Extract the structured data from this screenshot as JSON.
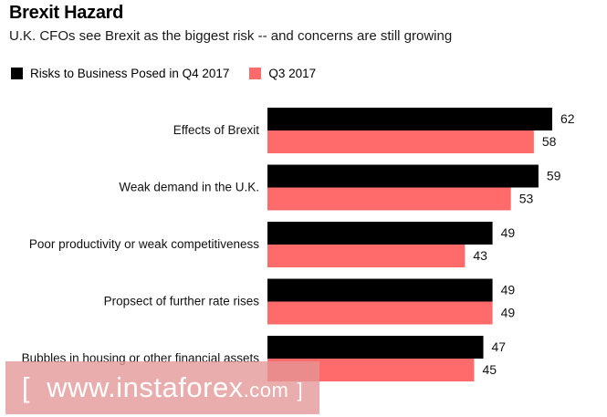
{
  "chart_data": {
    "type": "bar",
    "orientation": "horizontal",
    "title": "Brexit Hazard",
    "subtitle": "U.K. CFOs see Brexit as the biggest risk -- and concerns are still growing",
    "categories": [
      "Effects of Brexit",
      "Weak demand in the U.K.",
      "Poor productivity or weak competitiveness",
      "Propsect of further rate rises",
      "Bubbles in housing or other financial assets"
    ],
    "series": [
      {
        "name": "Risks to Business Posed in Q4 2017",
        "values": [
          62,
          59,
          49,
          49,
          47
        ],
        "color": "#000000"
      },
      {
        "name": "Q3 2017",
        "values": [
          58,
          53,
          43,
          49,
          45
        ],
        "color": "#ff6b6b"
      }
    ],
    "xlim": [
      0,
      62
    ],
    "grid": false,
    "legend_position": "top-left"
  },
  "watermark": {
    "bracket_open": "[",
    "site": "www.instaforex",
    "domain": ".com",
    "bracket_close": "]"
  }
}
